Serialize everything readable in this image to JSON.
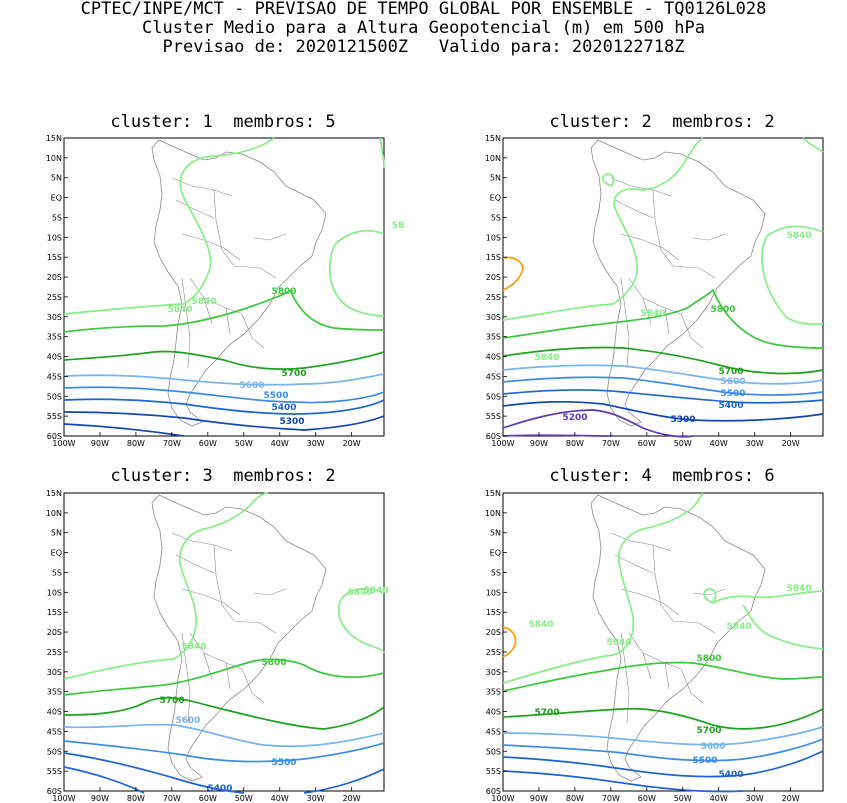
{
  "header": {
    "line1": "CPTEC/INPE/MCT - PREVISAO DE TEMPO GLOBAL POR ENSEMBLE - TQ0126L028",
    "line2": "Cluster Medio para a Altura Geopotencial (m) em 500 hPa",
    "line3": "Previsao de: 2020121500Z   Valido para: 2020122718Z"
  },
  "axes": {
    "lat_labels": [
      "15N",
      "10N",
      "5N",
      "EQ",
      "5S",
      "10S",
      "15S",
      "20S",
      "25S",
      "30S",
      "35S",
      "40S",
      "45S",
      "50S",
      "55S",
      "60S"
    ],
    "lon_labels": [
      "100W",
      "90W",
      "80W",
      "70W",
      "60W",
      "50W",
      "40W",
      "30W",
      "20W"
    ]
  },
  "colors": {
    "c5840": "#86ee86",
    "c5800": "#3cc83c",
    "c5700": "#1fa01f",
    "c5600": "#78b4f0",
    "c5500": "#3c8ce6",
    "c5400": "#1e64d2",
    "c5300": "#1446b4",
    "c5200": "#5a3cb4",
    "c5880": "#ff9a00",
    "coast": "#8c8c8c"
  },
  "panels": [
    {
      "title": "cluster: 1  membros: 5",
      "labels": [
        {
          "text": "5840",
          "color": "c5840"
        },
        {
          "text": "58",
          "color": "c5840"
        },
        {
          "text": "5840",
          "color": "c5840"
        },
        {
          "text": "5800",
          "color": "c5800"
        },
        {
          "text": "5700",
          "color": "c5700"
        },
        {
          "text": "5600",
          "color": "c5600"
        },
        {
          "text": "5500",
          "color": "c5500"
        },
        {
          "text": "5400",
          "color": "c5400"
        },
        {
          "text": "5300",
          "color": "c5300"
        }
      ]
    },
    {
      "title": "cluster: 2  membros: 2",
      "labels": [
        {
          "text": "5840",
          "color": "c5840"
        },
        {
          "text": "5840",
          "color": "c5840"
        },
        {
          "text": "5840",
          "color": "c5840"
        },
        {
          "text": "5800",
          "color": "c5800"
        },
        {
          "text": "5700",
          "color": "c5700"
        },
        {
          "text": "5600",
          "color": "c5600"
        },
        {
          "text": "5500",
          "color": "c5500"
        },
        {
          "text": "5400",
          "color": "c5400"
        },
        {
          "text": "5300",
          "color": "c5300"
        },
        {
          "text": "5200",
          "color": "c5200"
        }
      ]
    },
    {
      "title": "cluster: 3  membros: 2",
      "labels": [
        {
          "text": "5840",
          "color": "c5840"
        },
        {
          "text": "5840",
          "color": "c5840"
        },
        {
          "text": "5840",
          "color": "c5840"
        },
        {
          "text": "5800",
          "color": "c5800"
        },
        {
          "text": "5700",
          "color": "c5700"
        },
        {
          "text": "5600",
          "color": "c5600"
        },
        {
          "text": "5500",
          "color": "c5500"
        },
        {
          "text": "5400",
          "color": "c5400"
        }
      ]
    },
    {
      "title": "cluster: 4  membros: 6",
      "labels": [
        {
          "text": "5840",
          "color": "c5840"
        },
        {
          "text": "5840",
          "color": "c5840"
        },
        {
          "text": "5840",
          "color": "c5840"
        },
        {
          "text": "5840",
          "color": "c5840"
        },
        {
          "text": "5800",
          "color": "c5800"
        },
        {
          "text": "5700",
          "color": "c5700"
        },
        {
          "text": "5700",
          "color": "c5700"
        },
        {
          "text": "5600",
          "color": "c5600"
        },
        {
          "text": "5500",
          "color": "c5500"
        },
        {
          "text": "5400",
          "color": "c5400"
        }
      ]
    }
  ]
}
